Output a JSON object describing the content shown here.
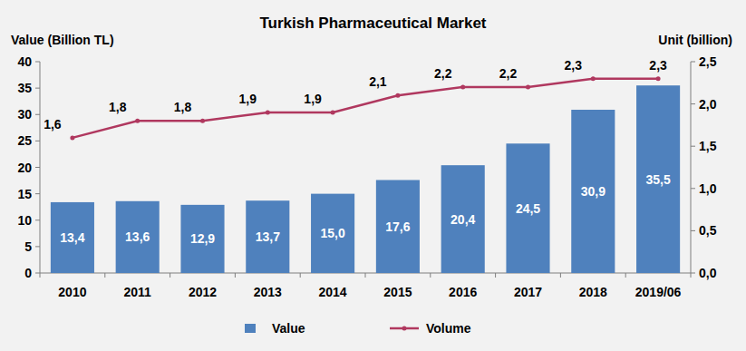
{
  "chart_data": {
    "type": "bar",
    "title": "Turkish Pharmaceutical Market",
    "y_label": "Value (Billion TL)",
    "y2_label": "Unit (billion)",
    "categories": [
      "2010",
      "2011",
      "2012",
      "2013",
      "2014",
      "2015",
      "2016",
      "2017",
      "2018",
      "2019/06"
    ],
    "series": [
      {
        "name": "Value",
        "type": "bar",
        "color": "#4f81bd",
        "values": [
          13.4,
          13.6,
          12.9,
          13.7,
          15.0,
          17.6,
          20.4,
          24.5,
          30.9,
          35.5
        ],
        "value_labels": [
          "13,4",
          "13,6",
          "12,9",
          "13,7",
          "15,0",
          "17,6",
          "20,4",
          "24,5",
          "30,9",
          "35,5"
        ]
      },
      {
        "name": "Volume",
        "type": "line",
        "axis": "y2",
        "color": "#b0385f",
        "marker": "circle",
        "line_style": "solid",
        "values": [
          1.6,
          1.8,
          1.8,
          1.9,
          1.9,
          2.1,
          2.2,
          2.2,
          2.3,
          2.3
        ],
        "value_labels": [
          "1,6",
          "1,8",
          "1,8",
          "1,9",
          "1,9",
          "2,1",
          "2,2",
          "2,2",
          "2,3",
          "2,3"
        ]
      }
    ],
    "ylim": [
      0,
      40
    ],
    "yticks": [
      0,
      5,
      10,
      15,
      20,
      25,
      30,
      35,
      40
    ],
    "y2lim": [
      0,
      2.5
    ],
    "y2ticks": [
      {
        "value": 0,
        "label": "0,0"
      },
      {
        "value": 0.5,
        "label": "0,5"
      },
      {
        "value": 1,
        "label": "1,0"
      },
      {
        "value": 1.5,
        "label": "1,5"
      },
      {
        "value": 2,
        "label": "2,0"
      },
      {
        "value": 2.5,
        "label": "2,5"
      }
    ],
    "grid": false,
    "legend": "bottom",
    "data_labels": true
  }
}
